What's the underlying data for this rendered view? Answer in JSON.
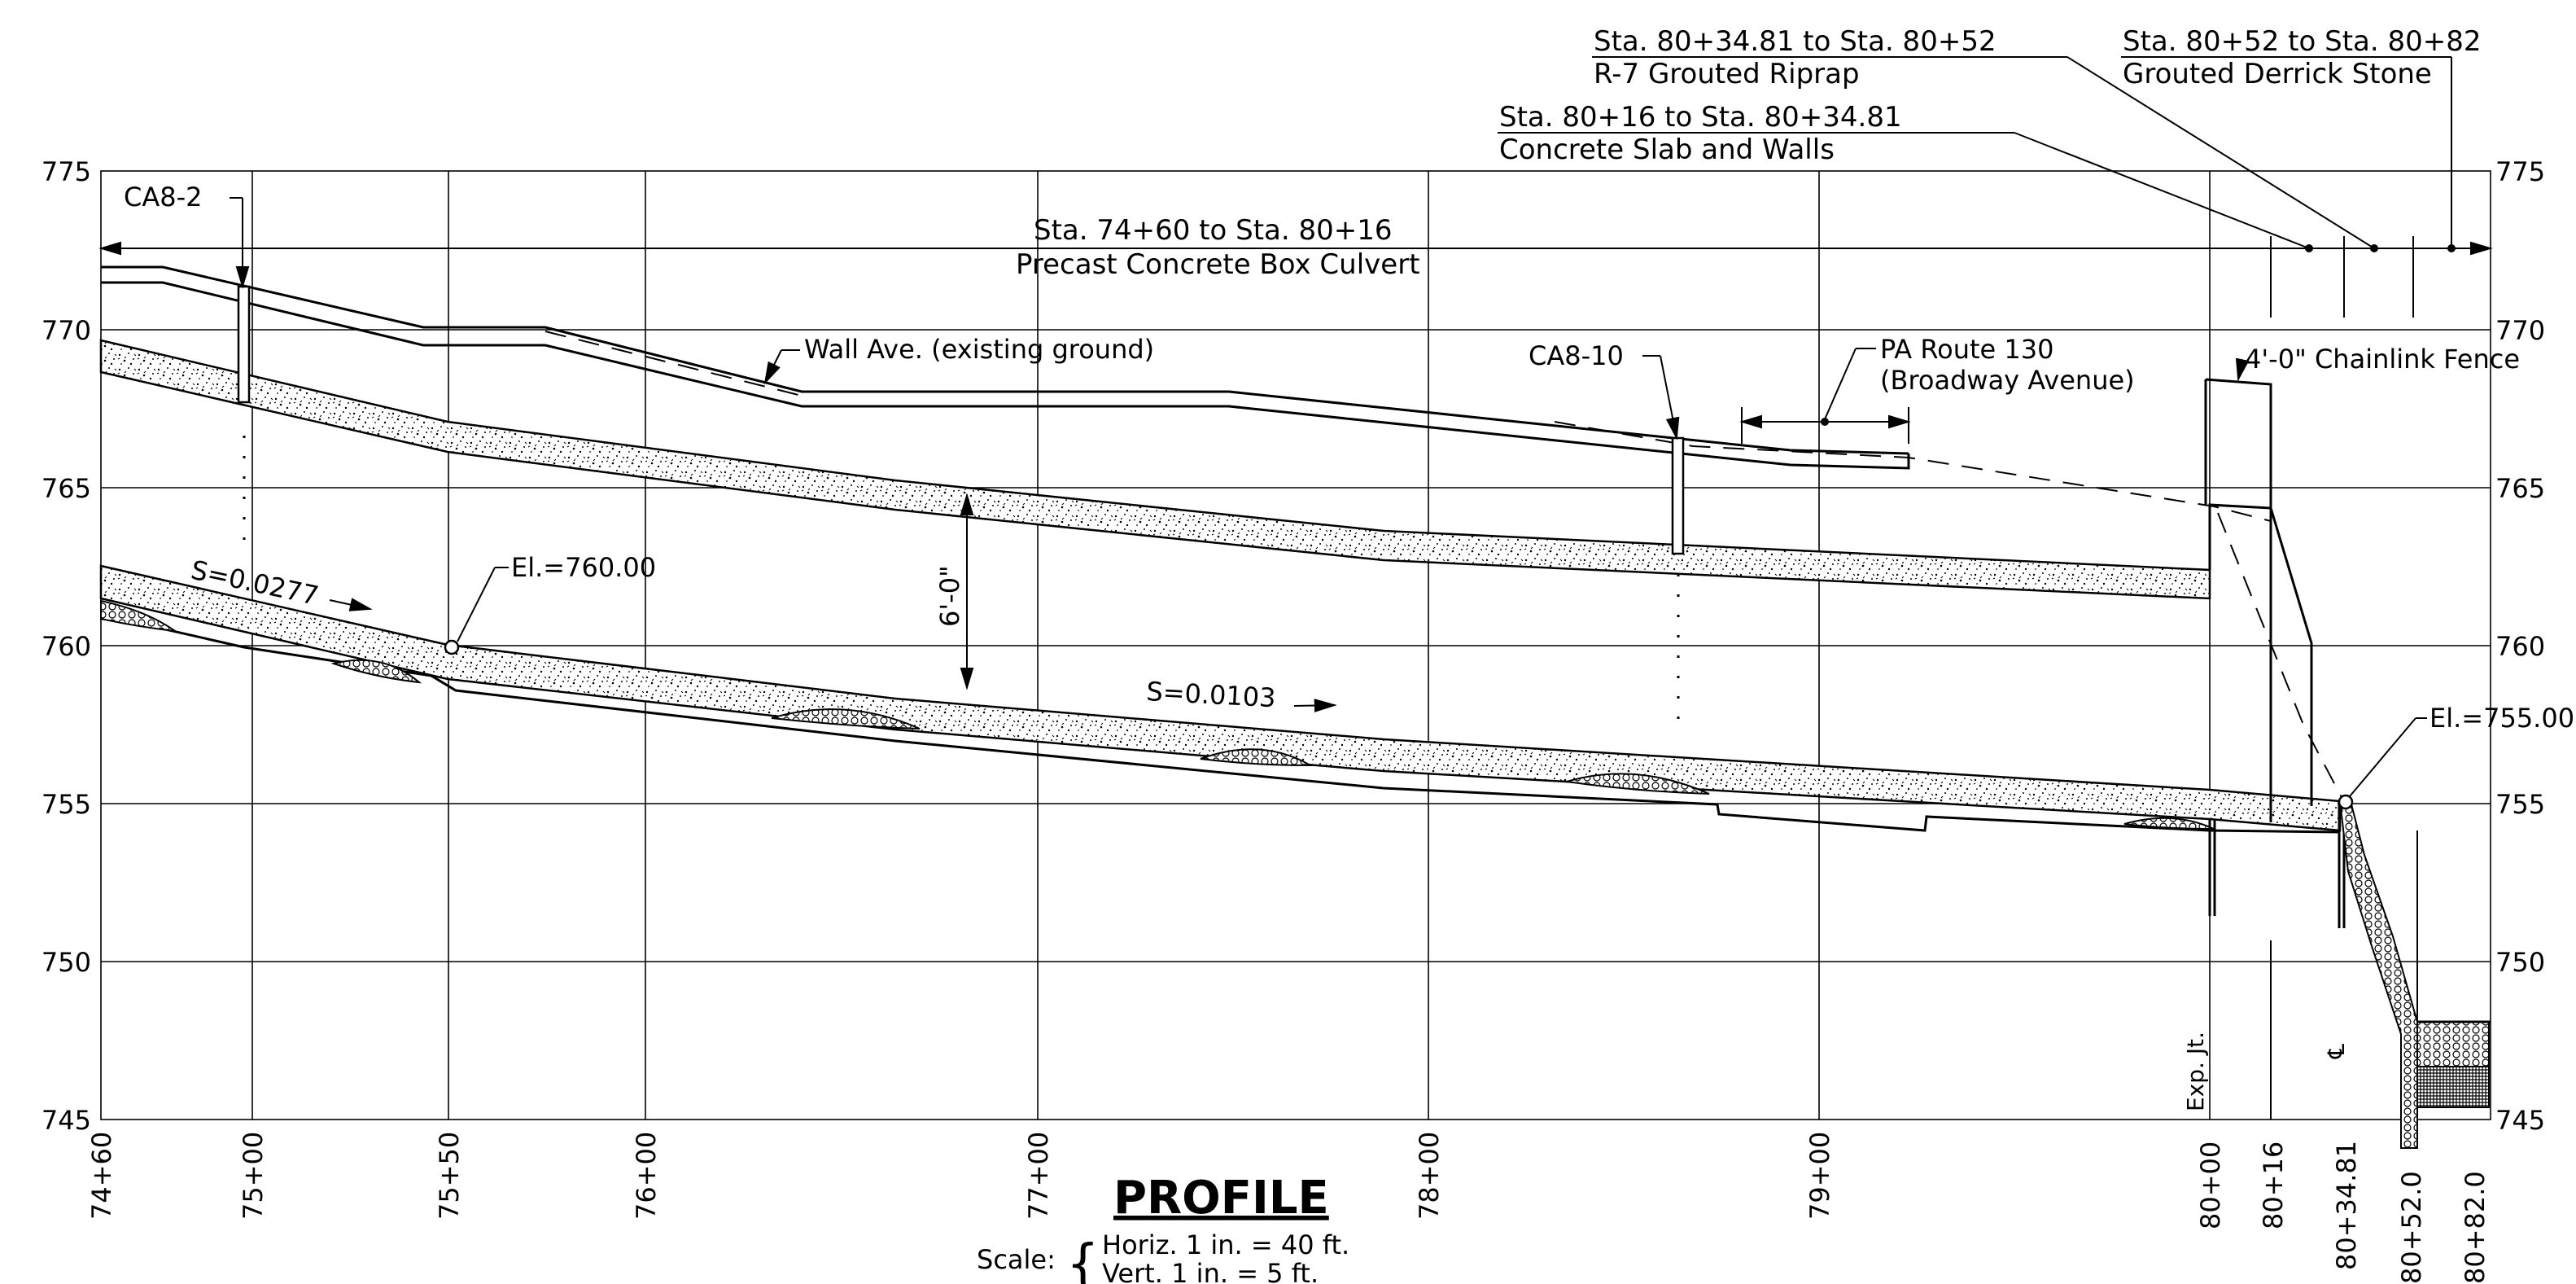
{
  "drawing": {
    "title": "PROFILE",
    "scale": {
      "label": "Scale:",
      "horiz": "Horiz. 1 in. = 40 ft.",
      "vert": "Vert. 1 in. = 5 ft."
    }
  },
  "axes": {
    "elevations": [
      "775",
      "770",
      "765",
      "760",
      "755",
      "750",
      "745"
    ],
    "stations": [
      "74+60",
      "75+00",
      "75+50",
      "76+00",
      "77+00",
      "78+00",
      "79+00",
      "80+00",
      "80+16",
      "80+34.81",
      "80+52.0",
      "80+82.0"
    ]
  },
  "segments": [
    {
      "station": "Sta. 74+60 to Sta. 80+16",
      "description": "Precast Concrete Box Culvert"
    },
    {
      "station": "Sta. 80+16 to Sta. 80+34.81",
      "description": "Concrete Slab and Walls"
    },
    {
      "station": "Sta. 80+34.81 to Sta. 80+52",
      "description": "R-7 Grouted Riprap"
    },
    {
      "station": "Sta. 80+52 to Sta. 80+82",
      "description": "Grouted Derrick Stone"
    }
  ],
  "labels": {
    "borings": [
      "CA8-2",
      "CA8-10"
    ],
    "wall_ave": "Wall Ave.  (existing ground)",
    "route_line1": "PA Route 130",
    "route_line2": "(Broadway Avenue)",
    "fence": "4'-0\" Chainlink  Fence",
    "slope1": "S=0.0277",
    "slope2": "S=0.0103",
    "el1": "El.=760.00",
    "el2": "El.=755.00",
    "height": "6'-0\"",
    "exp_jt": "Exp. Jt.",
    "centerline": "℄"
  }
}
